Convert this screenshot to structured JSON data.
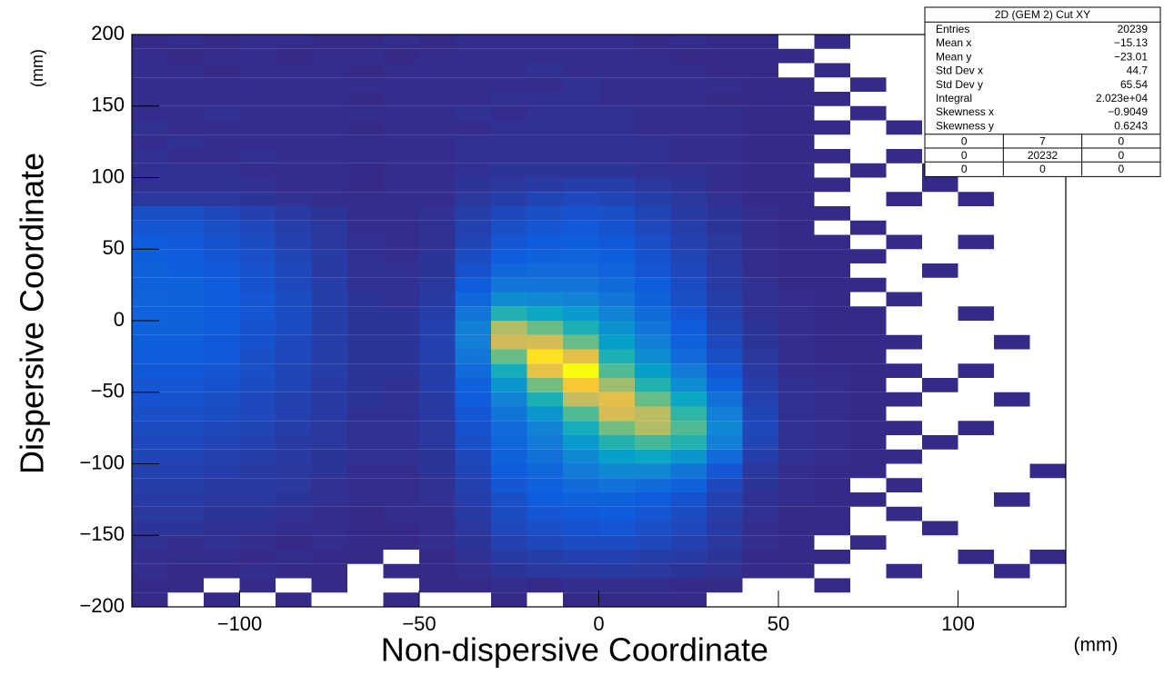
{
  "chart_data": {
    "type": "heatmap",
    "xlabel": "Non-dispersive Coordinate",
    "xunit": "(mm)",
    "ylabel": "Dispersive Coordinate",
    "yunit": "(mm)",
    "xlim": [
      -130,
      130
    ],
    "ylim": [
      -200,
      200
    ],
    "xticks": [
      {
        "value": -100,
        "label": "−100"
      },
      {
        "value": -50,
        "label": "−50"
      },
      0,
      50,
      100
    ],
    "yticks": [
      {
        "value": -200,
        "label": "−200"
      },
      {
        "value": -150,
        "label": "−150"
      },
      {
        "value": -100,
        "label": "−100"
      },
      {
        "value": -50,
        "label": "−50"
      },
      0,
      50,
      100,
      150,
      200
    ],
    "xbins": [
      -130,
      -120,
      -110,
      -100,
      -90,
      -80,
      -70,
      -60,
      -50,
      -40,
      -30,
      -20,
      -10,
      0,
      10,
      20,
      30,
      40,
      50,
      60,
      70,
      80,
      90,
      100,
      110,
      120,
      130
    ],
    "ybins": [
      -200,
      -190,
      -180,
      -170,
      -160,
      -150,
      -140,
      -130,
      -120,
      -110,
      -100,
      -90,
      -80,
      -70,
      -60,
      -50,
      -40,
      -30,
      -20,
      -10,
      0,
      10,
      20,
      30,
      40,
      50,
      60,
      70,
      80,
      90,
      100,
      110,
      120,
      130,
      140,
      150,
      160,
      170,
      180,
      190,
      200
    ],
    "z": [
      [
        1,
        0,
        1,
        0,
        1,
        0,
        0,
        1,
        0,
        0,
        1,
        0,
        1,
        1,
        1,
        1,
        0,
        0,
        0,
        0,
        0,
        0,
        0,
        0,
        0,
        0
      ],
      [
        1,
        1,
        0,
        1,
        0,
        1,
        0,
        0,
        1,
        1,
        2,
        1,
        2,
        2,
        2,
        1,
        1,
        0,
        0,
        1,
        0,
        0,
        0,
        0,
        0,
        0
      ],
      [
        2,
        1,
        1,
        2,
        1,
        1,
        0,
        1,
        1,
        2,
        4,
        5,
        5,
        6,
        5,
        4,
        3,
        1,
        1,
        0,
        0,
        1,
        0,
        0,
        1,
        0
      ],
      [
        2,
        2,
        2,
        1,
        2,
        1,
        1,
        0,
        1,
        3,
        6,
        7,
        8,
        8,
        7,
        6,
        4,
        1,
        1,
        1,
        0,
        0,
        0,
        1,
        0,
        1
      ],
      [
        3,
        2,
        3,
        2,
        1,
        2,
        1,
        1,
        2,
        4,
        8,
        10,
        11,
        11,
        10,
        8,
        5,
        2,
        1,
        0,
        1,
        0,
        0,
        0,
        0,
        0
      ],
      [
        4,
        4,
        3,
        3,
        2,
        2,
        1,
        1,
        2,
        5,
        10,
        12,
        13,
        14,
        12,
        10,
        6,
        2,
        1,
        1,
        0,
        0,
        1,
        0,
        0,
        0
      ],
      [
        5,
        5,
        4,
        4,
        3,
        2,
        1,
        2,
        2,
        6,
        11,
        14,
        15,
        16,
        14,
        11,
        7,
        3,
        1,
        1,
        0,
        1,
        0,
        0,
        0,
        0
      ],
      [
        6,
        6,
        5,
        5,
        4,
        3,
        2,
        2,
        3,
        7,
        12,
        16,
        18,
        18,
        16,
        13,
        8,
        3,
        2,
        1,
        1,
        0,
        0,
        0,
        1,
        0
      ],
      [
        7,
        7,
        6,
        6,
        5,
        3,
        2,
        2,
        3,
        8,
        14,
        18,
        22,
        24,
        22,
        18,
        10,
        4,
        2,
        1,
        0,
        1,
        0,
        0,
        0,
        0
      ],
      [
        8,
        8,
        7,
        6,
        5,
        4,
        2,
        2,
        4,
        9,
        16,
        20,
        28,
        34,
        34,
        26,
        14,
        5,
        2,
        1,
        1,
        0,
        0,
        0,
        0,
        1
      ],
      [
        9,
        9,
        8,
        7,
        6,
        4,
        3,
        3,
        4,
        10,
        18,
        24,
        34,
        44,
        48,
        40,
        22,
        7,
        3,
        2,
        1,
        1,
        0,
        0,
        0,
        0
      ],
      [
        10,
        10,
        9,
        8,
        6,
        5,
        3,
        3,
        5,
        12,
        20,
        28,
        42,
        56,
        64,
        56,
        30,
        9,
        3,
        2,
        1,
        0,
        1,
        0,
        0,
        0
      ],
      [
        11,
        11,
        10,
        9,
        7,
        5,
        3,
        3,
        5,
        13,
        22,
        32,
        52,
        72,
        84,
        66,
        34,
        10,
        3,
        2,
        1,
        1,
        0,
        1,
        0,
        0
      ],
      [
        12,
        12,
        11,
        10,
        8,
        6,
        3,
        3,
        6,
        14,
        26,
        40,
        66,
        92,
        86,
        60,
        30,
        9,
        3,
        2,
        1,
        0,
        0,
        0,
        0,
        0
      ],
      [
        13,
        13,
        12,
        10,
        8,
        6,
        4,
        3,
        6,
        16,
        32,
        54,
        88,
        96,
        70,
        48,
        24,
        8,
        3,
        2,
        1,
        1,
        0,
        0,
        1,
        0
      ],
      [
        14,
        14,
        13,
        11,
        9,
        6,
        4,
        3,
        7,
        18,
        40,
        72,
        104,
        80,
        56,
        36,
        18,
        7,
        3,
        2,
        1,
        0,
        1,
        0,
        0,
        0
      ],
      [
        15,
        15,
        14,
        12,
        9,
        7,
        4,
        4,
        7,
        22,
        52,
        98,
        120,
        66,
        44,
        28,
        14,
        6,
        2,
        2,
        1,
        1,
        0,
        1,
        0,
        0
      ],
      [
        16,
        16,
        15,
        12,
        10,
        7,
        4,
        4,
        8,
        26,
        70,
        112,
        96,
        54,
        36,
        22,
        12,
        5,
        2,
        1,
        1,
        0,
        0,
        0,
        0,
        0
      ],
      [
        17,
        17,
        15,
        13,
        10,
        7,
        4,
        4,
        8,
        30,
        90,
        92,
        70,
        44,
        30,
        18,
        10,
        4,
        2,
        1,
        1,
        1,
        0,
        0,
        1,
        0
      ],
      [
        18,
        18,
        16,
        13,
        11,
        7,
        4,
        4,
        8,
        30,
        84,
        70,
        54,
        38,
        26,
        16,
        9,
        4,
        2,
        1,
        1,
        0,
        0,
        0,
        0,
        0
      ],
      [
        19,
        18,
        16,
        14,
        11,
        7,
        4,
        4,
        7,
        26,
        56,
        48,
        42,
        32,
        22,
        14,
        8,
        3,
        2,
        1,
        1,
        0,
        0,
        1,
        0,
        0
      ],
      [
        19,
        18,
        16,
        14,
        11,
        7,
        4,
        3,
        6,
        20,
        36,
        34,
        32,
        26,
        18,
        12,
        7,
        3,
        2,
        1,
        0,
        1,
        0,
        0,
        0,
        0
      ],
      [
        18,
        18,
        16,
        13,
        10,
        7,
        3,
        3,
        5,
        16,
        26,
        26,
        26,
        22,
        16,
        11,
        6,
        3,
        1,
        1,
        1,
        0,
        0,
        0,
        0,
        0
      ],
      [
        18,
        17,
        15,
        13,
        10,
        6,
        3,
        3,
        4,
        13,
        20,
        22,
        22,
        19,
        14,
        10,
        6,
        2,
        1,
        1,
        0,
        0,
        1,
        0,
        0,
        0
      ],
      [
        17,
        16,
        14,
        12,
        9,
        6,
        3,
        2,
        4,
        11,
        16,
        18,
        19,
        17,
        13,
        9,
        5,
        2,
        1,
        1,
        1,
        0,
        0,
        0,
        0,
        0
      ],
      [
        16,
        15,
        13,
        11,
        8,
        5,
        3,
        2,
        3,
        9,
        14,
        16,
        17,
        15,
        12,
        8,
        5,
        2,
        1,
        1,
        0,
        1,
        0,
        1,
        0,
        0
      ],
      [
        14,
        14,
        12,
        10,
        7,
        5,
        2,
        2,
        3,
        8,
        12,
        14,
        15,
        13,
        10,
        7,
        4,
        2,
        1,
        0,
        1,
        0,
        0,
        0,
        0,
        0
      ],
      [
        12,
        12,
        10,
        8,
        6,
        4,
        2,
        2,
        3,
        7,
        10,
        12,
        13,
        12,
        9,
        6,
        4,
        2,
        1,
        1,
        0,
        0,
        0,
        0,
        0,
        0
      ],
      [
        5,
        5,
        5,
        4,
        3,
        2,
        2,
        2,
        2,
        5,
        7,
        9,
        10,
        9,
        7,
        5,
        3,
        1,
        1,
        0,
        0,
        1,
        0,
        1,
        0,
        0
      ],
      [
        3,
        3,
        3,
        3,
        2,
        2,
        1,
        2,
        2,
        4,
        5,
        6,
        7,
        7,
        5,
        4,
        2,
        1,
        1,
        1,
        0,
        0,
        1,
        0,
        0,
        0
      ],
      [
        3,
        3,
        3,
        2,
        2,
        2,
        1,
        2,
        2,
        3,
        4,
        4,
        4,
        4,
        3,
        3,
        2,
        1,
        1,
        0,
        1,
        0,
        1,
        0,
        0,
        0
      ],
      [
        3,
        2,
        2,
        3,
        2,
        2,
        2,
        2,
        2,
        3,
        3,
        3,
        3,
        3,
        3,
        2,
        2,
        1,
        1,
        1,
        0,
        1,
        0,
        0,
        0,
        0
      ],
      [
        2,
        3,
        2,
        2,
        2,
        2,
        2,
        2,
        2,
        3,
        3,
        3,
        3,
        3,
        3,
        2,
        2,
        1,
        1,
        0,
        0,
        0,
        0,
        0,
        0,
        0
      ],
      [
        3,
        2,
        2,
        2,
        2,
        2,
        1,
        2,
        2,
        2,
        3,
        3,
        3,
        3,
        2,
        2,
        2,
        1,
        1,
        1,
        0,
        1,
        0,
        0,
        0,
        0
      ],
      [
        2,
        2,
        3,
        2,
        2,
        2,
        2,
        2,
        2,
        3,
        2,
        3,
        3,
        3,
        2,
        2,
        2,
        1,
        1,
        0,
        1,
        0,
        0,
        0,
        0,
        0
      ],
      [
        2,
        2,
        2,
        2,
        2,
        2,
        1,
        2,
        2,
        2,
        3,
        3,
        3,
        2,
        2,
        2,
        1,
        1,
        1,
        1,
        0,
        0,
        0,
        0,
        0,
        0
      ],
      [
        2,
        2,
        2,
        2,
        2,
        2,
        2,
        2,
        2,
        2,
        2,
        2,
        3,
        2,
        2,
        2,
        2,
        1,
        1,
        0,
        1,
        0,
        0,
        0,
        0,
        0
      ],
      [
        2,
        2,
        1,
        2,
        2,
        2,
        1,
        2,
        2,
        2,
        2,
        3,
        2,
        2,
        2,
        2,
        1,
        1,
        0,
        1,
        0,
        0,
        0,
        0,
        0,
        0
      ],
      [
        2,
        1,
        2,
        2,
        1,
        2,
        2,
        1,
        2,
        2,
        2,
        2,
        2,
        2,
        2,
        1,
        1,
        1,
        1,
        0,
        0,
        0,
        0,
        0,
        0,
        0
      ],
      [
        1,
        2,
        1,
        2,
        2,
        1,
        1,
        2,
        1,
        2,
        2,
        2,
        2,
        2,
        1,
        2,
        1,
        1,
        0,
        1,
        0,
        0,
        0,
        0,
        0,
        0
      ]
    ],
    "stats_box": {
      "title": "2D (GEM 2) Cut XY",
      "rows": [
        [
          "Entries",
          "20239"
        ],
        [
          "Mean x",
          "−15.13"
        ],
        [
          "Mean y",
          "−23.01"
        ],
        [
          "Std Dev x",
          "44.7"
        ],
        [
          "Std Dev y",
          "65.54"
        ],
        [
          "Integral",
          "2.023e+04"
        ],
        [
          "Skewness x",
          "−0.9049"
        ],
        [
          "Skewness y",
          "0.6243"
        ]
      ],
      "overflow": [
        [
          "0",
          "7",
          "0"
        ],
        [
          "0",
          "20232",
          "0"
        ],
        [
          "0",
          "0",
          "0"
        ]
      ]
    }
  }
}
